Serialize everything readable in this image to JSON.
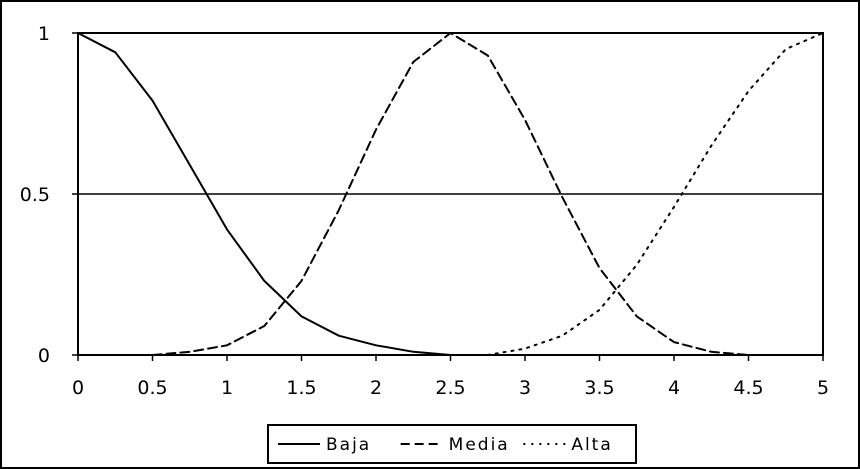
{
  "chart_data": {
    "type": "line",
    "title": "",
    "xlabel": "",
    "ylabel": "",
    "xlim": [
      0,
      5
    ],
    "ylim": [
      0,
      1
    ],
    "x_ticks": [
      "0",
      "0.5",
      "1",
      "1.5",
      "2",
      "2.5",
      "3",
      "3.5",
      "4",
      "4.5",
      "5"
    ],
    "y_ticks": [
      "0",
      "0.5",
      "1"
    ],
    "gridlines_y": [
      0.5,
      1
    ],
    "grid": "horizontal",
    "legend_position": "bottom",
    "x": [
      0,
      0.25,
      0.5,
      0.75,
      1,
      1.25,
      1.5,
      1.75,
      2,
      2.25,
      2.5,
      2.75,
      3,
      3.25,
      3.5,
      3.75,
      4,
      4.25,
      4.5,
      4.75,
      5
    ],
    "series": [
      {
        "name": "Baja",
        "style": "solid",
        "values": [
          1,
          0.94,
          0.79,
          0.59,
          0.39,
          0.23,
          0.12,
          0.06,
          0.03,
          0.01,
          0.0,
          0.0,
          null,
          null,
          null,
          null,
          null,
          null,
          null,
          null,
          null
        ]
      },
      {
        "name": "Media",
        "style": "dashed",
        "values": [
          null,
          null,
          0.0,
          0.01,
          0.03,
          0.09,
          0.23,
          0.45,
          0.7,
          0.91,
          1.0,
          0.93,
          0.73,
          0.49,
          0.27,
          0.12,
          0.04,
          0.01,
          0.0,
          null,
          null
        ]
      },
      {
        "name": "Alta",
        "style": "dotted",
        "values": [
          null,
          null,
          null,
          null,
          null,
          null,
          null,
          null,
          null,
          null,
          null,
          0.0,
          0.02,
          0.06,
          0.14,
          0.28,
          0.46,
          0.65,
          0.82,
          0.95,
          1.0
        ]
      }
    ]
  }
}
